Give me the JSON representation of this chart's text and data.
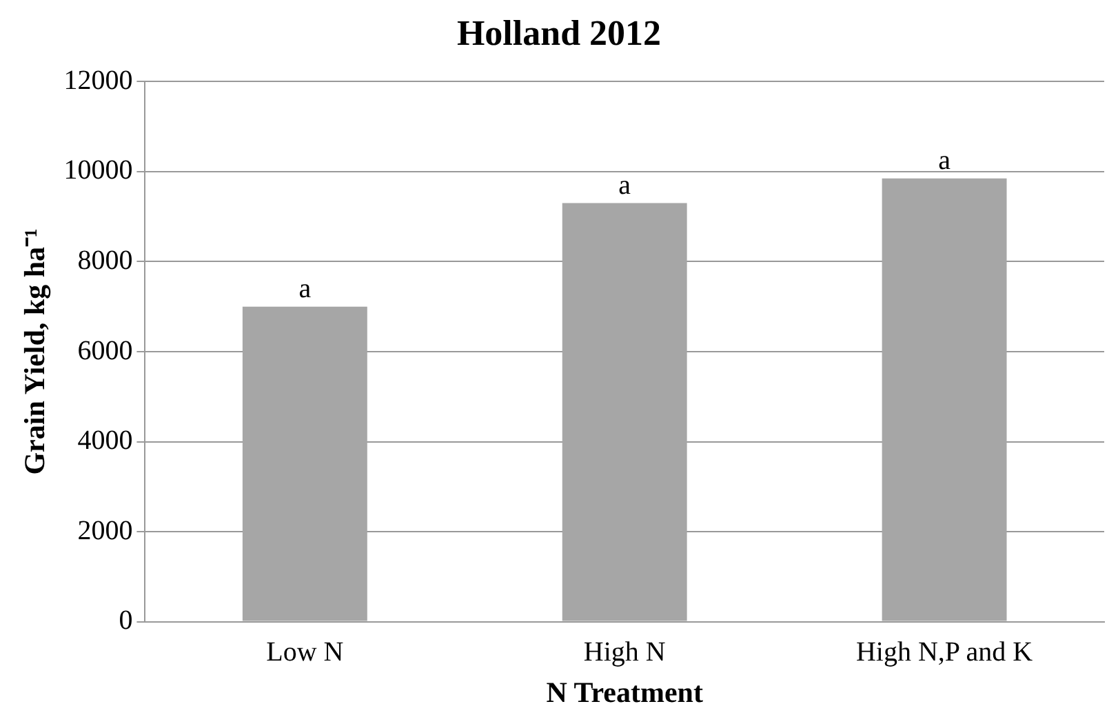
{
  "chart_data": {
    "type": "bar",
    "title": "Holland 2012",
    "xlabel": "N Treatment",
    "ylabel": "Grain Yield, kg ha⁻¹",
    "categories": [
      "Low N",
      "High N",
      "High N,P and K"
    ],
    "values": [
      7000,
      9300,
      9850
    ],
    "color": "#a6a6a6",
    "ylim": [
      0,
      12000
    ],
    "yticks": [
      0,
      2000,
      4000,
      6000,
      8000,
      10000,
      12000
    ],
    "grid": "y",
    "annotations": [
      {
        "text": "a",
        "x": "Low N",
        "y": 7000
      },
      {
        "text": "a",
        "x": "High N",
        "y": 9300
      },
      {
        "text": "a",
        "x": "High N,P and K",
        "y": 9850
      }
    ]
  }
}
